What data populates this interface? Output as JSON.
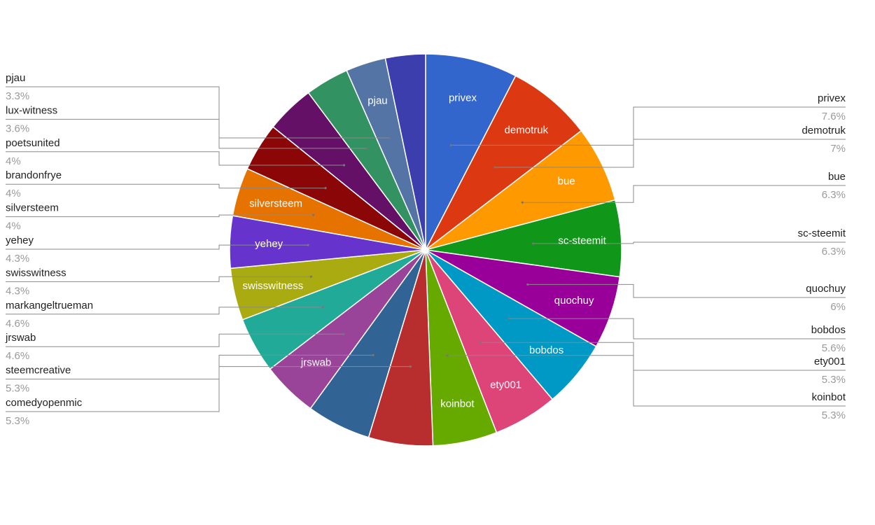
{
  "chart_data": {
    "type": "pie",
    "title": "",
    "slices": [
      {
        "name": "privex",
        "value": 7.6,
        "label": "7.6%",
        "color": "#3366cc",
        "side": "right",
        "inner": true
      },
      {
        "name": "demotruk",
        "value": 7.0,
        "label": "7%",
        "color": "#dc3912",
        "side": "right",
        "inner": true
      },
      {
        "name": "bue",
        "value": 6.3,
        "label": "6.3%",
        "color": "#ff9900",
        "side": "right",
        "inner": true
      },
      {
        "name": "sc-steemit",
        "value": 6.3,
        "label": "6.3%",
        "color": "#109618",
        "side": "right",
        "inner": true
      },
      {
        "name": "quochuy",
        "value": 6.0,
        "label": "6%",
        "color": "#990099",
        "side": "right",
        "inner": true
      },
      {
        "name": "bobdos",
        "value": 5.6,
        "label": "5.6%",
        "color": "#0099c6",
        "side": "right",
        "inner": true
      },
      {
        "name": "ety001",
        "value": 5.3,
        "label": "5.3%",
        "color": "#dd4477",
        "side": "right",
        "inner": true
      },
      {
        "name": "koinbot",
        "value": 5.3,
        "label": "5.3%",
        "color": "#66aa00",
        "side": "right",
        "inner": true
      },
      {
        "name": "comedyopenmic",
        "value": 5.3,
        "label": "5.3%",
        "color": "#b82e2e",
        "side": "left",
        "inner": false
      },
      {
        "name": "steemcreative",
        "value": 5.3,
        "label": "5.3%",
        "color": "#316395",
        "side": "left",
        "inner": false
      },
      {
        "name": "jrswab",
        "value": 4.6,
        "label": "4.6%",
        "color": "#994499",
        "side": "left",
        "inner": true
      },
      {
        "name": "markangeltrueman",
        "value": 4.6,
        "label": "4.6%",
        "color": "#22aa99",
        "side": "left",
        "inner": false
      },
      {
        "name": "swisswitness",
        "value": 4.3,
        "label": "4.3%",
        "color": "#aaaa11",
        "side": "left",
        "inner": true
      },
      {
        "name": "yehey",
        "value": 4.3,
        "label": "4.3%",
        "color": "#6633cc",
        "side": "left",
        "inner": true
      },
      {
        "name": "silversteem",
        "value": 4.0,
        "label": "4%",
        "color": "#e67300",
        "side": "left",
        "inner": true
      },
      {
        "name": "brandonfrye",
        "value": 4.0,
        "label": "4%",
        "color": "#8b0707",
        "side": "left",
        "inner": false
      },
      {
        "name": "poetsunited",
        "value": 4.0,
        "label": "4%",
        "color": "#651067",
        "side": "left",
        "inner": false
      },
      {
        "name": "lux-witness",
        "value": 3.6,
        "label": "3.6%",
        "color": "#329262",
        "side": "left",
        "inner": false
      },
      {
        "name": "pjau",
        "value": 3.3,
        "label": "3.3%",
        "color": "#5574a6",
        "side": "left",
        "inner": true
      },
      {
        "name": "",
        "value": 3.3,
        "label": "",
        "color": "#3b3eac",
        "side": "none",
        "inner": false
      }
    ],
    "legend": "labeled leader lines left and right"
  }
}
